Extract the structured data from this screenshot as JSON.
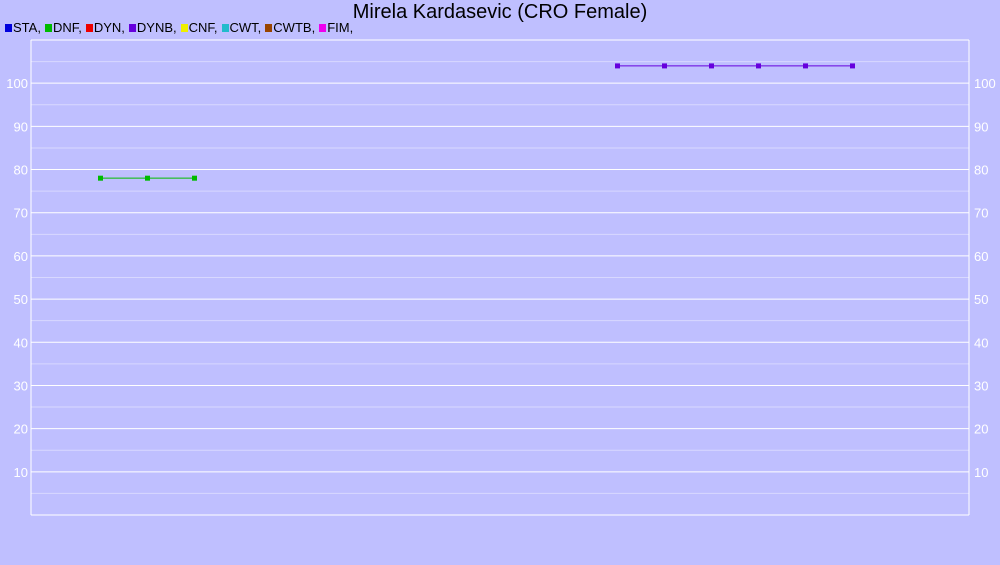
{
  "chart_data": {
    "type": "line",
    "title": "Mirela Kardasevic (CRO Female)",
    "xlabel": "",
    "ylabel": "",
    "ylim": [
      0,
      110
    ],
    "y_ticks": [
      10,
      20,
      30,
      40,
      50,
      60,
      70,
      80,
      90,
      100
    ],
    "grid": true,
    "legend_position": "top-left",
    "legend": [
      {
        "label": "STA,",
        "color": "#0000dd"
      },
      {
        "label": "DNF,",
        "color": "#00bb00"
      },
      {
        "label": "DYN,",
        "color": "#ee0000"
      },
      {
        "label": "DYNB,",
        "color": "#6600dd"
      },
      {
        "label": "CNF,",
        "color": "#eeee00"
      },
      {
        "label": "CWT,",
        "color": "#22bbcc"
      },
      {
        "label": "CWTB,",
        "color": "#994400"
      },
      {
        "label": "FIM,",
        "color": "#ee00ee"
      }
    ],
    "series": [
      {
        "name": "DNF",
        "color": "#00bb00",
        "x": [
          2,
          3,
          4
        ],
        "y": [
          78,
          78,
          78
        ]
      },
      {
        "name": "DYNB",
        "color": "#6600dd",
        "x": [
          13,
          14,
          15,
          16,
          17,
          18
        ],
        "y": [
          104,
          104,
          104,
          104,
          104,
          104
        ]
      }
    ],
    "x_count": 20
  }
}
